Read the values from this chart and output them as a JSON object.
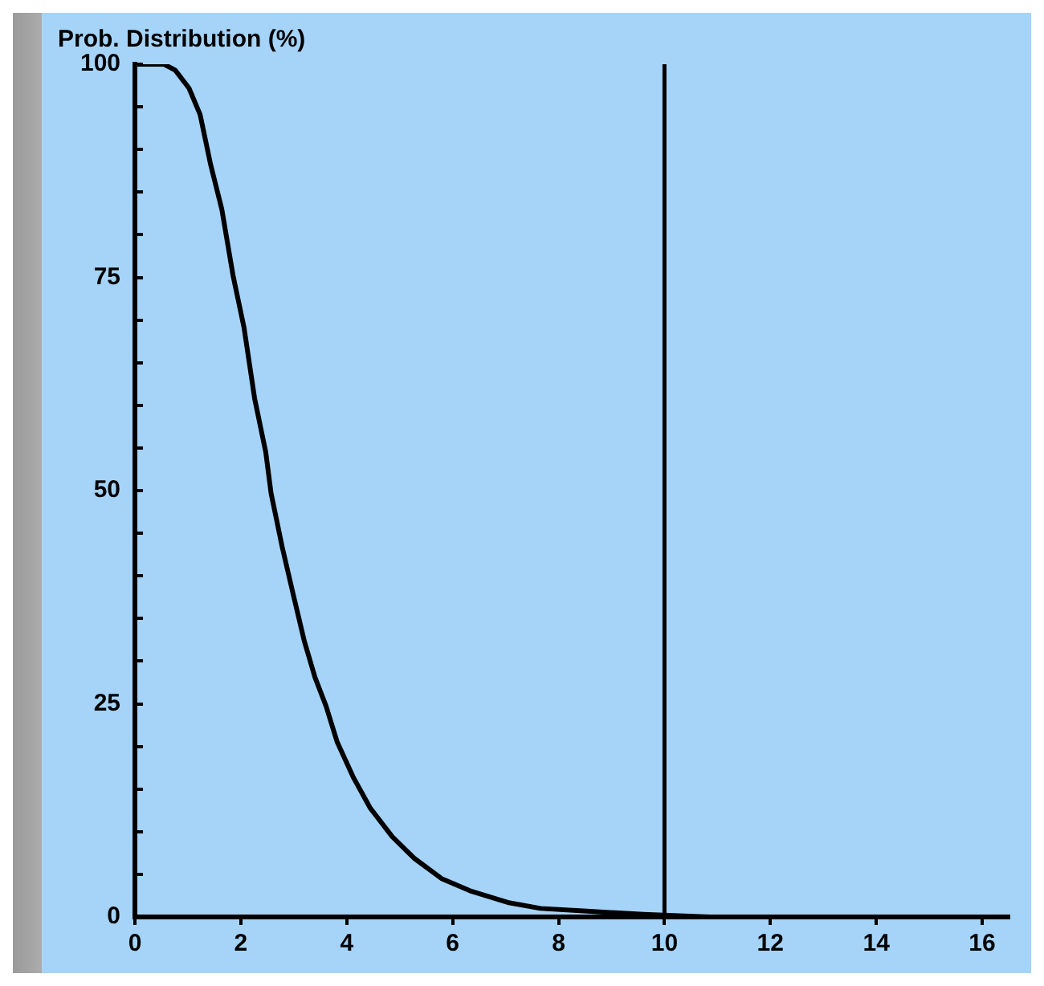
{
  "chart_data": {
    "type": "line",
    "ylabel": "Prob. Distribution (%)",
    "series": [
      {
        "color": "#000000",
        "x": [
          0,
          0.55,
          0.76,
          1.02,
          1.23,
          1.43,
          1.64,
          1.85,
          2.06,
          2.26,
          2.47,
          2.57,
          2.78,
          2.99,
          3.2,
          3.4,
          3.61,
          3.82,
          4.13,
          4.44,
          4.86,
          5.27,
          5.79,
          6.36,
          7.04,
          7.66,
          8.47,
          9.6,
          10.85
        ],
        "values": [
          100,
          100,
          99.3,
          97.2,
          94.1,
          88.2,
          83,
          75.3,
          69.1,
          60.8,
          54.5,
          49.7,
          43.4,
          37.8,
          32.3,
          28.1,
          24.7,
          20.5,
          16.3,
          12.8,
          9.4,
          6.9,
          4.5,
          3,
          1.7,
          1,
          0.7,
          0.3,
          0
        ]
      }
    ],
    "xlim": [
      0,
      16.5
    ],
    "xticks": [
      0,
      2,
      4,
      6,
      8,
      10,
      12,
      14,
      16
    ],
    "ylim": [
      0,
      100
    ],
    "yticks": [
      0,
      {
        "value": 5,
        "label": null
      },
      {
        "value": 10,
        "label": null
      },
      {
        "value": 15,
        "label": null
      },
      {
        "value": 20,
        "label": null
      },
      25,
      {
        "value": 30,
        "label": null
      },
      {
        "value": 35,
        "label": null
      },
      {
        "value": 40,
        "label": null
      },
      {
        "value": 45,
        "label": null
      },
      50,
      {
        "value": 55,
        "label": null
      },
      {
        "value": 60,
        "label": null
      },
      {
        "value": 65,
        "label": null
      },
      {
        "value": 70,
        "label": null
      },
      75,
      {
        "value": 80,
        "label": null
      },
      {
        "value": 85,
        "label": null
      },
      {
        "value": 90,
        "label": null
      },
      {
        "value": 95,
        "label": null
      },
      100
    ],
    "ref_lines": [
      {
        "axis": "x",
        "value": 10,
        "color": "#000000"
      }
    ],
    "grid": false,
    "legend": false,
    "marker": "none",
    "line_style": "solid"
  }
}
